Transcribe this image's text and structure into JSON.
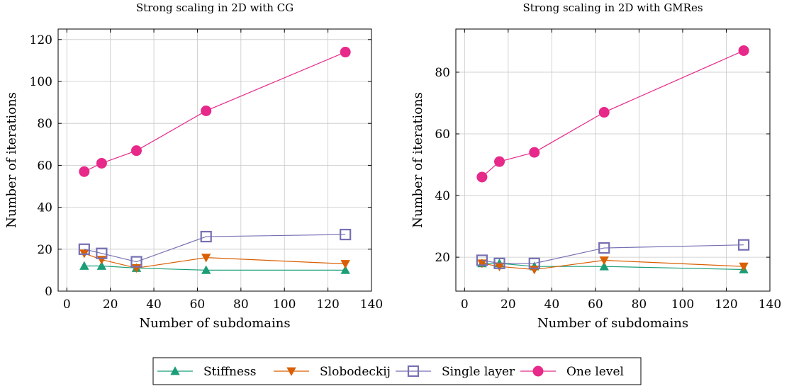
{
  "colors": {
    "stiffness": "#1b9e77",
    "slobodeckij": "#d95f02",
    "single_layer": "#7570b3",
    "one_level": "#e7298a",
    "grid": "#c8c8c8"
  },
  "legend": {
    "items": [
      "Stiffness",
      "Slobodeckij",
      "Single layer",
      "One level"
    ],
    "placement": "bottom-center"
  },
  "chart_data": [
    {
      "type": "line",
      "title": "Strong scaling in 2D with CG",
      "xlabel": "Number of subdomains",
      "ylabel": "Number of iterations",
      "x": [
        8,
        16,
        32,
        64,
        128
      ],
      "xlim": [
        -4,
        140
      ],
      "ylim": [
        0,
        125
      ],
      "xticks": [
        0,
        20,
        40,
        60,
        80,
        100,
        120,
        140
      ],
      "yticks": [
        0,
        20,
        40,
        60,
        80,
        100,
        120
      ],
      "grid": true,
      "series": [
        {
          "name": "Stiffness",
          "marker": "triangle-up",
          "values": [
            12,
            12,
            11,
            10,
            10
          ]
        },
        {
          "name": "Slobodeckij",
          "marker": "triangle-down",
          "values": [
            18,
            15,
            11,
            16,
            13
          ]
        },
        {
          "name": "Single layer",
          "marker": "square-open",
          "values": [
            20,
            18,
            14,
            26,
            27
          ]
        },
        {
          "name": "One level",
          "marker": "circle",
          "values": [
            57,
            61,
            67,
            86,
            114
          ]
        }
      ]
    },
    {
      "type": "line",
      "title": "Strong scaling in 2D with GMRes",
      "xlabel": "Number of subdomains",
      "ylabel": "Number of iterations",
      "x": [
        8,
        16,
        32,
        64,
        128
      ],
      "xlim": [
        -4,
        140
      ],
      "ylim": [
        9,
        94
      ],
      "xticks": [
        0,
        20,
        40,
        60,
        80,
        100,
        120,
        140
      ],
      "yticks": [
        20,
        40,
        60,
        80
      ],
      "grid": true,
      "series": [
        {
          "name": "Stiffness",
          "marker": "triangle-up",
          "values": [
            18,
            18,
            17,
            17,
            16
          ]
        },
        {
          "name": "Slobodeckij",
          "marker": "triangle-down",
          "values": [
            18,
            17,
            16,
            19,
            17
          ]
        },
        {
          "name": "Single layer",
          "marker": "square-open",
          "values": [
            19,
            18,
            18,
            23,
            24
          ]
        },
        {
          "name": "One level",
          "marker": "circle",
          "values": [
            46,
            51,
            54,
            67,
            87
          ]
        }
      ]
    }
  ]
}
